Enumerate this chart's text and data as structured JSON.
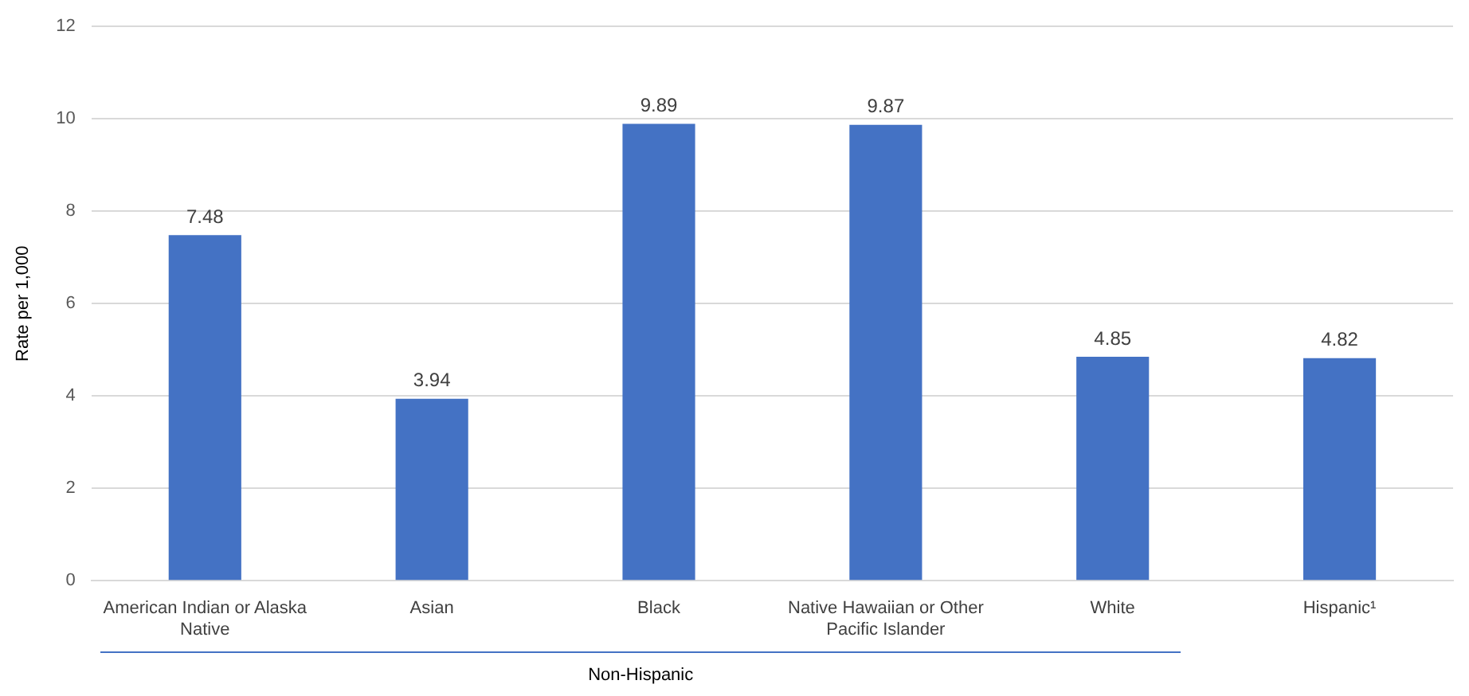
{
  "chart_data": {
    "type": "bar",
    "ylabel": "Rate per 1,000",
    "categories": [
      "American Indian or Alaska Native",
      "Asian",
      "Black",
      "Native Hawaiian or Other Pacific Islander",
      "White",
      "Hispanic¹"
    ],
    "values": [
      7.48,
      3.94,
      9.89,
      9.87,
      4.85,
      4.82
    ],
    "color": "#4472c4",
    "ylim": [
      0,
      12
    ],
    "yticks": [
      0,
      2,
      4,
      6,
      8,
      10,
      12
    ],
    "grid": "y",
    "data_labels": true,
    "annotations": [
      "Non-Hispanic"
    ]
  }
}
